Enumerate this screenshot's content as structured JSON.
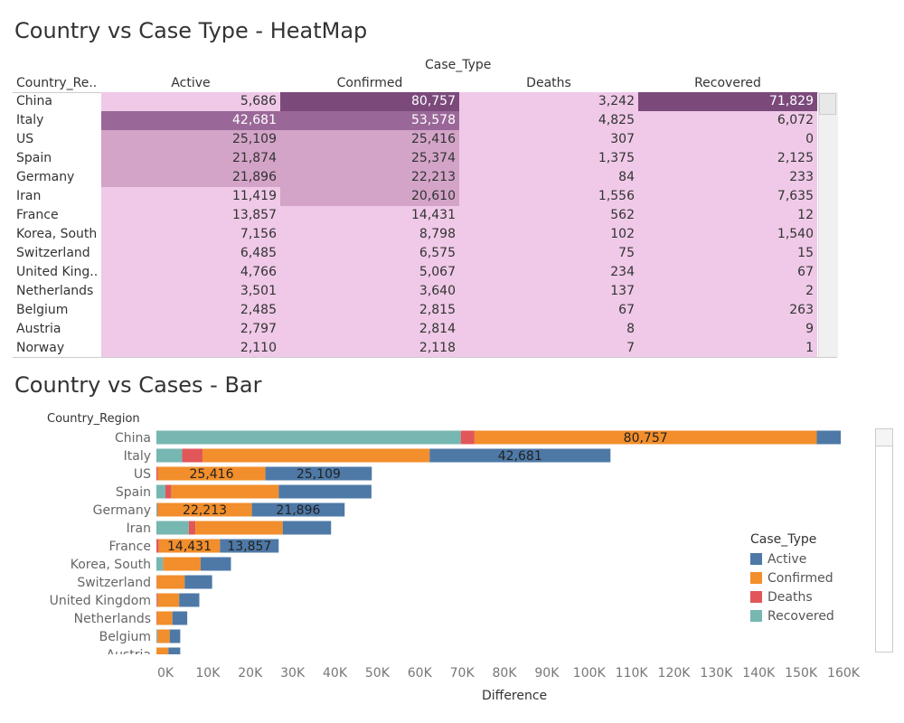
{
  "heatmap": {
    "title": "Country vs Case Type - HeatMap",
    "case_type_header": "Case_Type",
    "country_header": "Country_Re..",
    "columns": [
      "Active",
      "Confirmed",
      "Deaths",
      "Recovered"
    ],
    "rows": [
      {
        "country": "China",
        "values": [
          "5,686",
          "80,757",
          "3,242",
          "71,829"
        ]
      },
      {
        "country": "Italy",
        "values": [
          "42,681",
          "53,578",
          "4,825",
          "6,072"
        ]
      },
      {
        "country": "US",
        "values": [
          "25,109",
          "25,416",
          "307",
          "0"
        ]
      },
      {
        "country": "Spain",
        "values": [
          "21,874",
          "25,374",
          "1,375",
          "2,125"
        ]
      },
      {
        "country": "Germany",
        "values": [
          "21,896",
          "22,213",
          "84",
          "233"
        ]
      },
      {
        "country": "Iran",
        "values": [
          "11,419",
          "20,610",
          "1,556",
          "7,635"
        ]
      },
      {
        "country": "France",
        "values": [
          "13,857",
          "14,431",
          "562",
          "12"
        ]
      },
      {
        "country": "Korea, South",
        "values": [
          "7,156",
          "8,798",
          "102",
          "1,540"
        ]
      },
      {
        "country": "Switzerland",
        "values": [
          "6,485",
          "6,575",
          "75",
          "15"
        ]
      },
      {
        "country": "United King..",
        "values": [
          "4,766",
          "5,067",
          "234",
          "67"
        ]
      },
      {
        "country": "Netherlands",
        "values": [
          "3,501",
          "3,640",
          "137",
          "2"
        ]
      },
      {
        "country": "Belgium",
        "values": [
          "2,485",
          "2,815",
          "67",
          "263"
        ]
      },
      {
        "country": "Austria",
        "values": [
          "2,797",
          "2,814",
          "8",
          "9"
        ]
      },
      {
        "country": "Norway",
        "values": [
          "2,110",
          "2,118",
          "7",
          "1"
        ]
      }
    ],
    "colors": {
      "low": "#efc9e7",
      "mid": "#d3a4c8",
      "high": "#9a6898",
      "top": "#7b4a7b"
    }
  },
  "chart_data": {
    "type": "bar",
    "orientation": "horizontal",
    "stacked": true,
    "title": "Country vs Cases - Bar",
    "ylabel": "Country_Region",
    "xlabel": "Difference",
    "xlim": [
      0,
      160000
    ],
    "x_ticks": [
      "0K",
      "10K",
      "20K",
      "30K",
      "40K",
      "50K",
      "60K",
      "70K",
      "80K",
      "90K",
      "100K",
      "110K",
      "120K",
      "130K",
      "140K",
      "150K",
      "160K"
    ],
    "categories": [
      "China",
      "Italy",
      "US",
      "Spain",
      "Germany",
      "Iran",
      "France",
      "Korea, South",
      "Switzerland",
      "United Kingdom",
      "Netherlands",
      "Belgium",
      "Austria"
    ],
    "series": [
      {
        "name": "Recovered",
        "color": "#76b7b2",
        "values": [
          71829,
          6072,
          0,
          2125,
          233,
          7635,
          12,
          1540,
          15,
          67,
          2,
          263,
          9
        ]
      },
      {
        "name": "Deaths",
        "color": "#e15759",
        "values": [
          3242,
          4825,
          307,
          1375,
          84,
          1556,
          562,
          102,
          75,
          234,
          137,
          67,
          8
        ]
      },
      {
        "name": "Confirmed",
        "color": "#f28e2b",
        "values": [
          80757,
          53578,
          25416,
          25374,
          22213,
          20610,
          14431,
          8798,
          6575,
          5067,
          3640,
          2815,
          2814
        ]
      },
      {
        "name": "Active",
        "color": "#4e79a7",
        "values": [
          5686,
          42681,
          25109,
          21874,
          21896,
          11419,
          13857,
          7156,
          6485,
          4766,
          3501,
          2485,
          2797
        ]
      }
    ],
    "data_labels": [
      {
        "category": "China",
        "series": "Confirmed",
        "text": "80,757"
      },
      {
        "category": "Italy",
        "series": "Active",
        "text": "42,681"
      },
      {
        "category": "US",
        "series": "Confirmed",
        "text": "25,416"
      },
      {
        "category": "US",
        "series": "Active",
        "text": "25,109"
      },
      {
        "category": "Germany",
        "series": "Confirmed",
        "text": "22,213"
      },
      {
        "category": "Germany",
        "series": "Active",
        "text": "21,896"
      },
      {
        "category": "France",
        "series": "Confirmed",
        "text": "14,431"
      },
      {
        "category": "France",
        "series": "Active",
        "text": "13,857"
      }
    ],
    "legend": {
      "title": "Case_Type",
      "position": "right",
      "items": [
        {
          "label": "Active",
          "color": "#4e79a7"
        },
        {
          "label": "Confirmed",
          "color": "#f28e2b"
        },
        {
          "label": "Deaths",
          "color": "#e15759"
        },
        {
          "label": "Recovered",
          "color": "#76b7b2"
        }
      ]
    },
    "grid": false
  }
}
